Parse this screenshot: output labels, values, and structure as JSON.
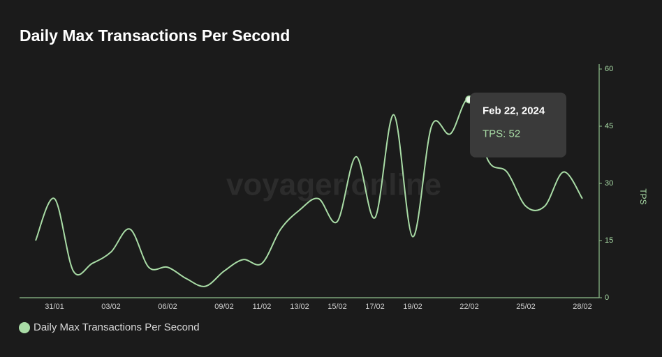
{
  "chart_data": {
    "type": "line",
    "title": "Daily Max Transactions Per Second",
    "watermark": "voyager.online",
    "y_label": "TPS",
    "categories": [
      null,
      "31/01",
      null,
      null,
      "03/02",
      null,
      null,
      "06/02",
      null,
      null,
      "09/02",
      null,
      "11/02",
      null,
      "13/02",
      null,
      "15/02",
      null,
      "17/02",
      null,
      "19/02",
      null,
      null,
      "22/02",
      null,
      null,
      "25/02",
      null,
      null,
      "28/02"
    ],
    "series": [
      {
        "name": "Daily Max Transactions Per Second",
        "color": "#a9dca6",
        "values": [
          15,
          26,
          7,
          9,
          12,
          18,
          8,
          8,
          5,
          3,
          7,
          10,
          9,
          18,
          23,
          26,
          20,
          37,
          21,
          48,
          16,
          45,
          43,
          52,
          36,
          33,
          24,
          24,
          33,
          26
        ]
      }
    ],
    "ylim": [
      0,
      60
    ],
    "yticks": [
      0,
      15,
      30,
      45,
      60
    ],
    "tooltip": {
      "title": "Feb 22, 2024",
      "text": "TPS: 52"
    },
    "grid": false
  }
}
